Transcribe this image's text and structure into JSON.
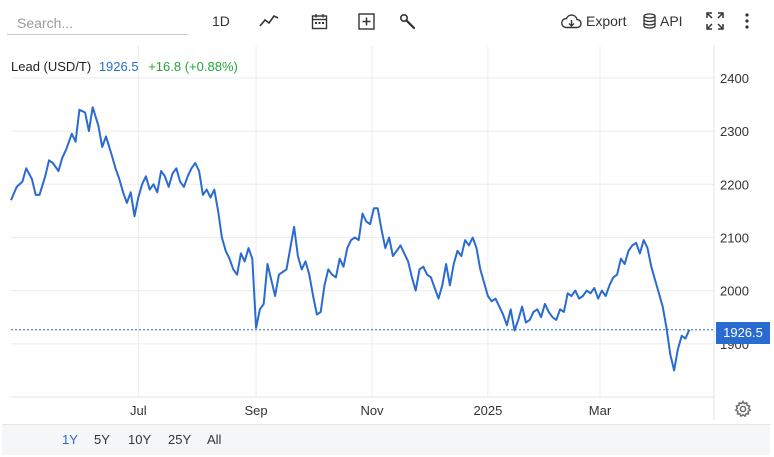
{
  "search": {
    "placeholder": "Search..."
  },
  "toolbar": {
    "interval_label": "1D",
    "export_label": "Export",
    "api_label": "API",
    "icons": [
      "line-chart-icon",
      "calendar-icon",
      "add-indicator-icon",
      "wrench-icon",
      "cloud-download-icon",
      "database-icon",
      "fullscreen-icon",
      "more-vertical-icon"
    ]
  },
  "legend": {
    "name": "Lead (USD/T)",
    "price": "1926.5",
    "change": "+16.8 (+0.88%)"
  },
  "price_tag": "1926.5",
  "range_options": [
    "1Y",
    "5Y",
    "10Y",
    "25Y",
    "All"
  ],
  "active_range": "1Y",
  "colors": {
    "line": "#2a6bd1",
    "change_up": "#27a53a",
    "grid": "#ececec"
  },
  "chart_data": {
    "type": "line",
    "title": "Lead (USD/T)",
    "xlabel": "",
    "ylabel": "",
    "y_tick_labels": [
      "2400",
      "2300",
      "2200",
      "2100",
      "2000",
      "1900"
    ],
    "x_tick_labels": [
      "Jul",
      "Sep",
      "Nov",
      "2025",
      "Mar"
    ],
    "y_ticks": [
      2400,
      2300,
      2200,
      2100,
      2000,
      1900
    ],
    "ylim": [
      1800,
      2460
    ],
    "x_ticks_dates": [
      "2024-07-01",
      "2024-09-01",
      "2024-11-01",
      "2025-01-01",
      "2025-03-01"
    ],
    "xlim": [
      "2024-04-25",
      "2025-04-30"
    ],
    "grid": true,
    "last_price_line": 1926.5,
    "series": [
      {
        "name": "Lead (USD/T)",
        "points": [
          [
            "2024-04-25",
            2170
          ],
          [
            "2024-04-28",
            2195
          ],
          [
            "2024-05-01",
            2205
          ],
          [
            "2024-05-03",
            2230
          ],
          [
            "2024-05-06",
            2210
          ],
          [
            "2024-05-08",
            2180
          ],
          [
            "2024-05-10",
            2180
          ],
          [
            "2024-05-13",
            2215
          ],
          [
            "2024-05-15",
            2245
          ],
          [
            "2024-05-17",
            2240
          ],
          [
            "2024-05-20",
            2225
          ],
          [
            "2024-05-22",
            2250
          ],
          [
            "2024-05-24",
            2265
          ],
          [
            "2024-05-27",
            2295
          ],
          [
            "2024-05-29",
            2280
          ],
          [
            "2024-05-31",
            2340
          ],
          [
            "2024-06-03",
            2335
          ],
          [
            "2024-06-05",
            2300
          ],
          [
            "2024-06-07",
            2345
          ],
          [
            "2024-06-10",
            2310
          ],
          [
            "2024-06-12",
            2270
          ],
          [
            "2024-06-14",
            2290
          ],
          [
            "2024-06-17",
            2255
          ],
          [
            "2024-06-19",
            2230
          ],
          [
            "2024-06-21",
            2210
          ],
          [
            "2024-06-23",
            2185
          ],
          [
            "2024-06-25",
            2165
          ],
          [
            "2024-06-27",
            2185
          ],
          [
            "2024-06-29",
            2140
          ],
          [
            "2024-07-01",
            2175
          ],
          [
            "2024-07-03",
            2200
          ],
          [
            "2024-07-05",
            2215
          ],
          [
            "2024-07-07",
            2190
          ],
          [
            "2024-07-09",
            2200
          ],
          [
            "2024-07-11",
            2185
          ],
          [
            "2024-07-13",
            2225
          ],
          [
            "2024-07-15",
            2215
          ],
          [
            "2024-07-17",
            2195
          ],
          [
            "2024-07-19",
            2220
          ],
          [
            "2024-07-21",
            2230
          ],
          [
            "2024-07-23",
            2205
          ],
          [
            "2024-07-25",
            2195
          ],
          [
            "2024-07-27",
            2215
          ],
          [
            "2024-07-29",
            2230
          ],
          [
            "2024-07-31",
            2240
          ],
          [
            "2024-08-02",
            2225
          ],
          [
            "2024-08-04",
            2180
          ],
          [
            "2024-08-06",
            2190
          ],
          [
            "2024-08-08",
            2175
          ],
          [
            "2024-08-10",
            2190
          ],
          [
            "2024-08-12",
            2150
          ],
          [
            "2024-08-14",
            2100
          ],
          [
            "2024-08-16",
            2075
          ],
          [
            "2024-08-18",
            2060
          ],
          [
            "2024-08-20",
            2040
          ],
          [
            "2024-08-22",
            2030
          ],
          [
            "2024-08-24",
            2070
          ],
          [
            "2024-08-26",
            2055
          ],
          [
            "2024-08-28",
            2080
          ],
          [
            "2024-08-30",
            2060
          ],
          [
            "2024-09-01",
            1930
          ],
          [
            "2024-09-03",
            1965
          ],
          [
            "2024-09-05",
            1975
          ],
          [
            "2024-09-07",
            2050
          ],
          [
            "2024-09-09",
            2020
          ],
          [
            "2024-09-11",
            1990
          ],
          [
            "2024-09-13",
            2030
          ],
          [
            "2024-09-15",
            2035
          ],
          [
            "2024-09-17",
            2040
          ],
          [
            "2024-09-19",
            2080
          ],
          [
            "2024-09-21",
            2120
          ],
          [
            "2024-09-23",
            2065
          ],
          [
            "2024-09-25",
            2040
          ],
          [
            "2024-09-27",
            2055
          ],
          [
            "2024-09-29",
            2030
          ],
          [
            "2024-10-01",
            1990
          ],
          [
            "2024-10-03",
            1955
          ],
          [
            "2024-10-05",
            1960
          ],
          [
            "2024-10-07",
            2010
          ],
          [
            "2024-10-09",
            2040
          ],
          [
            "2024-10-11",
            2030
          ],
          [
            "2024-10-13",
            2025
          ],
          [
            "2024-10-15",
            2060
          ],
          [
            "2024-10-17",
            2045
          ],
          [
            "2024-10-19",
            2080
          ],
          [
            "2024-10-21",
            2095
          ],
          [
            "2024-10-23",
            2100
          ],
          [
            "2024-10-25",
            2095
          ],
          [
            "2024-10-27",
            2145
          ],
          [
            "2024-10-29",
            2130
          ],
          [
            "2024-10-31",
            2125
          ],
          [
            "2024-11-02",
            2155
          ],
          [
            "2024-11-04",
            2155
          ],
          [
            "2024-11-06",
            2115
          ],
          [
            "2024-11-08",
            2080
          ],
          [
            "2024-11-10",
            2100
          ],
          [
            "2024-11-12",
            2065
          ],
          [
            "2024-11-14",
            2075
          ],
          [
            "2024-11-16",
            2085
          ],
          [
            "2024-11-18",
            2070
          ],
          [
            "2024-11-20",
            2055
          ],
          [
            "2024-11-22",
            2025
          ],
          [
            "2024-11-24",
            2000
          ],
          [
            "2024-11-26",
            2040
          ],
          [
            "2024-11-28",
            2045
          ],
          [
            "2024-11-30",
            2030
          ],
          [
            "2024-12-02",
            2025
          ],
          [
            "2024-12-04",
            2005
          ],
          [
            "2024-12-06",
            1985
          ],
          [
            "2024-12-08",
            2010
          ],
          [
            "2024-12-10",
            2050
          ],
          [
            "2024-12-12",
            2010
          ],
          [
            "2024-12-14",
            2050
          ],
          [
            "2024-12-16",
            2075
          ],
          [
            "2024-12-18",
            2065
          ],
          [
            "2024-12-20",
            2095
          ],
          [
            "2024-12-22",
            2085
          ],
          [
            "2024-12-24",
            2100
          ],
          [
            "2024-12-26",
            2080
          ],
          [
            "2024-12-28",
            2040
          ],
          [
            "2024-12-30",
            2015
          ],
          [
            "2025-01-01",
            1990
          ],
          [
            "2025-01-03",
            1980
          ],
          [
            "2025-01-05",
            1985
          ],
          [
            "2025-01-07",
            1970
          ],
          [
            "2025-01-09",
            1955
          ],
          [
            "2025-01-11",
            1935
          ],
          [
            "2025-01-13",
            1965
          ],
          [
            "2025-01-15",
            1925
          ],
          [
            "2025-01-17",
            1945
          ],
          [
            "2025-01-19",
            1970
          ],
          [
            "2025-01-21",
            1940
          ],
          [
            "2025-01-23",
            1945
          ],
          [
            "2025-01-25",
            1960
          ],
          [
            "2025-01-27",
            1965
          ],
          [
            "2025-01-29",
            1950
          ],
          [
            "2025-01-31",
            1975
          ],
          [
            "2025-02-02",
            1960
          ],
          [
            "2025-02-04",
            1950
          ],
          [
            "2025-02-06",
            1945
          ],
          [
            "2025-02-08",
            1965
          ],
          [
            "2025-02-10",
            1960
          ],
          [
            "2025-02-12",
            1995
          ],
          [
            "2025-02-14",
            1990
          ],
          [
            "2025-02-16",
            2000
          ],
          [
            "2025-02-18",
            1985
          ],
          [
            "2025-02-20",
            1990
          ],
          [
            "2025-02-22",
            2000
          ],
          [
            "2025-02-24",
            1995
          ],
          [
            "2025-02-26",
            2005
          ],
          [
            "2025-02-28",
            1985
          ],
          [
            "2025-03-02",
            2000
          ],
          [
            "2025-03-04",
            1990
          ],
          [
            "2025-03-06",
            2010
          ],
          [
            "2025-03-08",
            2025
          ],
          [
            "2025-03-10",
            2030
          ],
          [
            "2025-03-12",
            2060
          ],
          [
            "2025-03-14",
            2050
          ],
          [
            "2025-03-16",
            2075
          ],
          [
            "2025-03-18",
            2085
          ],
          [
            "2025-03-20",
            2090
          ],
          [
            "2025-03-22",
            2070
          ],
          [
            "2025-03-24",
            2095
          ],
          [
            "2025-03-26",
            2080
          ],
          [
            "2025-03-28",
            2045
          ],
          [
            "2025-03-30",
            2020
          ],
          [
            "2025-04-01",
            1995
          ],
          [
            "2025-04-03",
            1970
          ],
          [
            "2025-04-05",
            1930
          ],
          [
            "2025-04-07",
            1880
          ],
          [
            "2025-04-09",
            1850
          ],
          [
            "2025-04-11",
            1890
          ],
          [
            "2025-04-13",
            1915
          ],
          [
            "2025-04-15",
            1910
          ],
          [
            "2025-04-17",
            1926.5
          ]
        ]
      }
    ]
  }
}
